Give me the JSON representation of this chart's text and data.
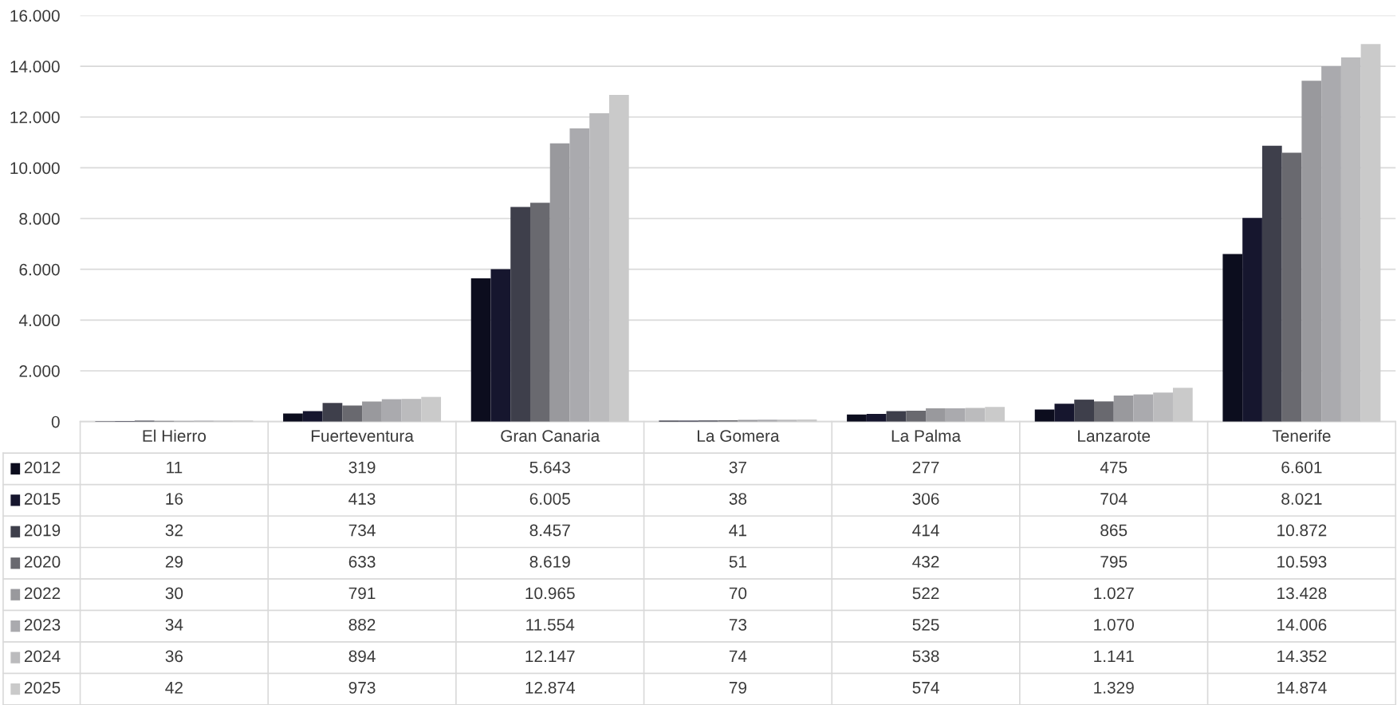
{
  "chart_data": {
    "type": "bar",
    "categories": [
      "El Hierro",
      "Fuerteventura",
      "Gran Canaria",
      "La Gomera",
      "La Palma",
      "Lanzarote",
      "Tenerife"
    ],
    "ylim": [
      0,
      16000
    ],
    "yticks": [
      0,
      {
        "value": 2000,
        "label": "2.000"
      },
      {
        "value": 4000,
        "label": "4.000"
      },
      {
        "value": 6000,
        "label": "6.000"
      },
      {
        "value": 8000,
        "label": "8.000"
      },
      {
        "value": 10000,
        "label": "10.000"
      },
      {
        "value": 12000,
        "label": "12.000"
      },
      {
        "value": 14000,
        "label": "14.000"
      },
      {
        "value": 16000,
        "label": "16.000"
      }
    ],
    "grid": "y",
    "legend": "bottom",
    "series": [
      {
        "name": "2012",
        "color": "#0c0d1e",
        "values": [
          11,
          319,
          5643,
          37,
          277,
          475,
          6601
        ],
        "value_labels": [
          "11",
          "319",
          "5.643",
          "37",
          "277",
          "475",
          "6.601"
        ]
      },
      {
        "name": "2015",
        "color": "#16162e",
        "values": [
          16,
          413,
          6005,
          38,
          306,
          704,
          8021
        ],
        "value_labels": [
          "16",
          "413",
          "6.005",
          "38",
          "306",
          "704",
          "8.021"
        ]
      },
      {
        "name": "2019",
        "color": "#3e3f4b",
        "values": [
          32,
          734,
          8457,
          41,
          414,
          865,
          10872
        ],
        "value_labels": [
          "32",
          "734",
          "8.457",
          "41",
          "414",
          "865",
          "10.872"
        ]
      },
      {
        "name": "2020",
        "color": "#69696f",
        "values": [
          29,
          633,
          8619,
          51,
          432,
          795,
          10593
        ],
        "value_labels": [
          "29",
          "633",
          "8.619",
          "51",
          "432",
          "795",
          "10.593"
        ]
      },
      {
        "name": "2022",
        "color": "#99999d",
        "values": [
          30,
          791,
          10965,
          70,
          522,
          1027,
          13428
        ],
        "value_labels": [
          "30",
          "791",
          "10.965",
          "70",
          "522",
          "1.027",
          "13.428"
        ]
      },
      {
        "name": "2023",
        "color": "#aaaaae",
        "values": [
          34,
          882,
          11554,
          73,
          525,
          1070,
          14006
        ],
        "value_labels": [
          "34",
          "882",
          "11.554",
          "73",
          "525",
          "1.070",
          "14.006"
        ]
      },
      {
        "name": "2024",
        "color": "#bbbbbd",
        "values": [
          36,
          894,
          12147,
          74,
          538,
          1141,
          14352
        ],
        "value_labels": [
          "36",
          "894",
          "12.147",
          "74",
          "538",
          "1.141",
          "14.352"
        ]
      },
      {
        "name": "2025",
        "color": "#cacaca",
        "values": [
          42,
          973,
          12874,
          79,
          574,
          1329,
          14874
        ],
        "value_labels": [
          "42",
          "973",
          "12.874",
          "79",
          "574",
          "1.329",
          "14.874"
        ]
      }
    ]
  }
}
